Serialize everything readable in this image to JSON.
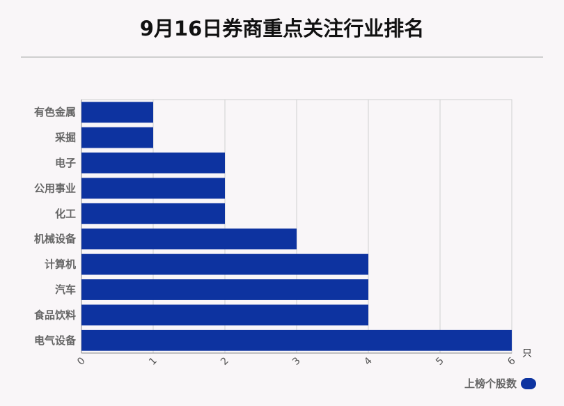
{
  "chart_data": {
    "type": "bar",
    "orientation": "horizontal",
    "title": "9月16日券商重点关注行业排名",
    "categories": [
      "有色金属",
      "采掘",
      "电子",
      "公用事业",
      "化工",
      "机械设备",
      "计算机",
      "汽车",
      "食品饮料",
      "电气设备"
    ],
    "series": [
      {
        "name": "上榜个股数",
        "values": [
          1,
          1,
          2,
          2,
          2,
          3,
          4,
          4,
          4,
          6
        ]
      }
    ],
    "xlim": [
      0,
      6
    ],
    "xticks": [
      0,
      1,
      2,
      3,
      4,
      5,
      6
    ],
    "xunit": "只",
    "grid": true,
    "legend_position": "bottom-right",
    "bar_color": "#0d33a0"
  }
}
